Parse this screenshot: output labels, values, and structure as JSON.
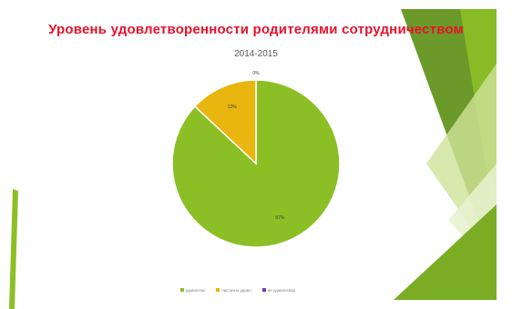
{
  "slide": {
    "title_color": "#e8112d",
    "decor_colors": {
      "green_dark": "#5b8f1e",
      "green_mid": "#8cbf26",
      "green_light": "#cfe39a",
      "green_pale": "#e7f1cf"
    }
  },
  "chart_data": {
    "type": "pie",
    "title": "Уровень удовлетворенности родителями  сотрудничеством",
    "subtitle": "2014-2015",
    "slices": [
      {
        "label": "удовлетво",
        "value": 87,
        "value_label": "87%",
        "color": "#8cbf26"
      },
      {
        "label": "частично удовл",
        "value": 13,
        "value_label": "13%",
        "color": "#e9b60f"
      },
      {
        "label": "не удовлетвор",
        "value": 0,
        "value_label": "0%",
        "color": "#6f3fb5"
      }
    ],
    "legend_position": "bottom",
    "start_angle_deg": 90,
    "direction": "clockwise"
  }
}
